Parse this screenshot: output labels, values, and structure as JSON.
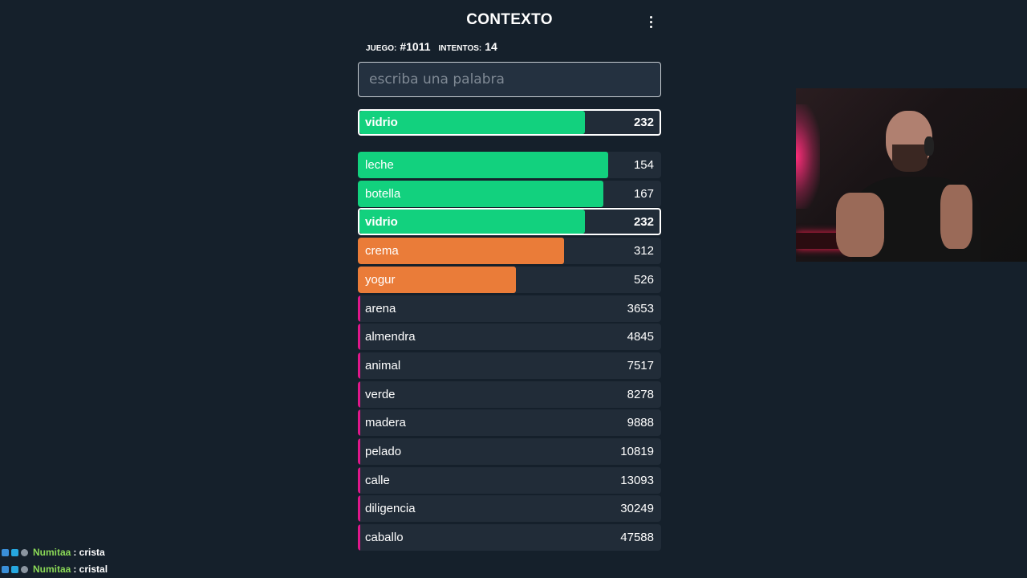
{
  "header": {
    "title": "CONTEXTO"
  },
  "stats": {
    "game_label": "JUEGO:",
    "game_value": "#1011",
    "tries_label": "INTENTOS:",
    "tries_value": "14"
  },
  "search": {
    "placeholder": "escriba una palabra",
    "value": ""
  },
  "last_guess": {
    "word": "vidrio",
    "rank": "232",
    "fill": 0.75,
    "color": "#12d17e"
  },
  "guesses": [
    {
      "word": "leche",
      "rank": "154",
      "fill": 0.825,
      "color": "#12d17e",
      "highlight": false
    },
    {
      "word": "botella",
      "rank": "167",
      "fill": 0.81,
      "color": "#12d17e",
      "highlight": false
    },
    {
      "word": "vidrio",
      "rank": "232",
      "fill": 0.75,
      "color": "#12d17e",
      "highlight": true
    },
    {
      "word": "crema",
      "rank": "312",
      "fill": 0.68,
      "color": "#ea7c39",
      "highlight": false
    },
    {
      "word": "yogur",
      "rank": "526",
      "fill": 0.52,
      "color": "#ea7c39",
      "highlight": false
    },
    {
      "word": "arena",
      "rank": "3653",
      "fill": 0.01,
      "color": "#e0178a",
      "highlight": false
    },
    {
      "word": "almendra",
      "rank": "4845",
      "fill": 0.01,
      "color": "#e0178a",
      "highlight": false
    },
    {
      "word": "animal",
      "rank": "7517",
      "fill": 0.01,
      "color": "#e0178a",
      "highlight": false
    },
    {
      "word": "verde",
      "rank": "8278",
      "fill": 0.01,
      "color": "#e0178a",
      "highlight": false
    },
    {
      "word": "madera",
      "rank": "9888",
      "fill": 0.01,
      "color": "#e0178a",
      "highlight": false
    },
    {
      "word": "pelado",
      "rank": "10819",
      "fill": 0.01,
      "color": "#e0178a",
      "highlight": false
    },
    {
      "word": "calle",
      "rank": "13093",
      "fill": 0.01,
      "color": "#e0178a",
      "highlight": false
    },
    {
      "word": "diligencia",
      "rank": "30249",
      "fill": 0.01,
      "color": "#e0178a",
      "highlight": false
    },
    {
      "word": "caballo",
      "rank": "47588",
      "fill": 0.01,
      "color": "#e0178a",
      "highlight": false
    }
  ],
  "chat": [
    {
      "user": "Numitaa",
      "message": ": crista"
    },
    {
      "user": "Numitaa",
      "message": ": cristal"
    }
  ]
}
